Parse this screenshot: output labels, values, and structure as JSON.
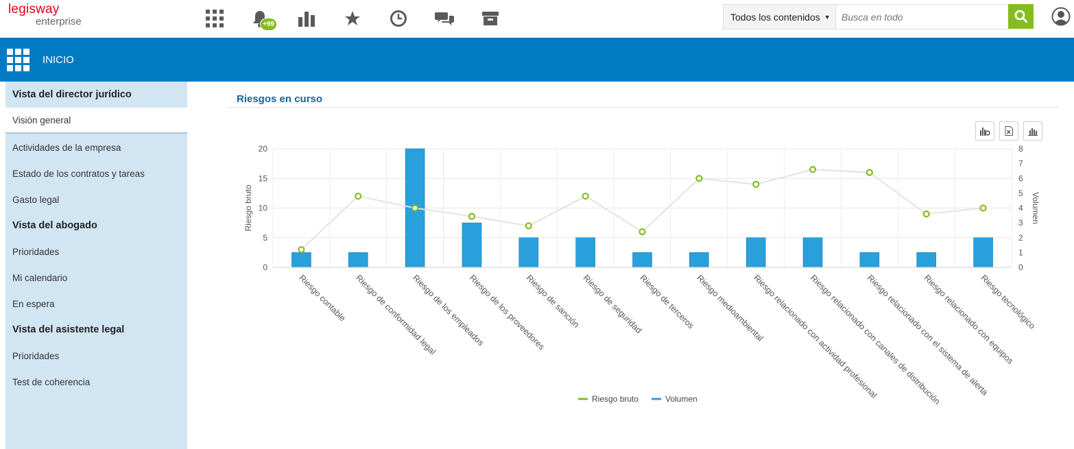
{
  "header": {
    "logo_brand": "legisway",
    "logo_sub": "enterprise",
    "notification_badge": "+99",
    "icons": [
      "apps-grid-icon",
      "bell-icon",
      "bar-chart-icon",
      "star-icon",
      "clock-icon",
      "chat-icon",
      "archive-icon"
    ],
    "search": {
      "scope": "Todos los contenidos",
      "placeholder": "Busca en todo"
    }
  },
  "band": {
    "title": "INICIO"
  },
  "sidebar": {
    "items": [
      {
        "label": "Vista del director jurídico",
        "type": "heading"
      },
      {
        "label": "Visión general",
        "type": "active"
      },
      {
        "label": "Actividades de la empresa",
        "type": "link"
      },
      {
        "label": "Estado de los contratos y tareas",
        "type": "link"
      },
      {
        "label": "Gasto legal",
        "type": "link"
      },
      {
        "label": "Vista del abogado",
        "type": "heading"
      },
      {
        "label": "Prioridades",
        "type": "link"
      },
      {
        "label": "Mi calendario",
        "type": "link"
      },
      {
        "label": "En espera",
        "type": "link"
      },
      {
        "label": "Vista del asistente legal",
        "type": "heading"
      },
      {
        "label": "Prioridades",
        "type": "link"
      },
      {
        "label": "Test de coherencia",
        "type": "link"
      }
    ]
  },
  "main": {
    "section_title": "Riesgos en curso"
  },
  "colors": {
    "brand_red": "#e2001a",
    "band_blue": "#007ac3",
    "accent_green": "#85bc20",
    "bar_blue": "#29a0dc",
    "sidebar_bg": "#d2e5f3"
  },
  "chart_data": {
    "type": "bar",
    "categories": [
      "Riesgo contable",
      "Riesgo de conformidad legal",
      "Riesgo de los empleados",
      "Riesgo de los proveedores",
      "Riesgo de sanción",
      "Riesgo de seguridad",
      "Riesgo de terceros",
      "Riesgo medioambiental",
      "Riesgo relacionado con actividad profesional",
      "Riesgo relacionado con canales de distribución",
      "Riesgo relacionado con el sistema de alerta",
      "Riesgo relacionado con equipos",
      "Riesgo tecnológico"
    ],
    "series": [
      {
        "name": "Volumen",
        "type": "bar",
        "axis": "right",
        "values": [
          1,
          1,
          8,
          3,
          2,
          2,
          1,
          1,
          2,
          2,
          1,
          1,
          2
        ]
      },
      {
        "name": "Riesgo bruto",
        "type": "line",
        "axis": "left",
        "values": [
          3,
          12,
          10,
          8.6,
          7,
          12,
          6,
          15,
          14,
          16.5,
          16,
          9,
          10
        ]
      }
    ],
    "ylabel": "Riesgo bruto",
    "y2label": "Volumen",
    "ylim": [
      0,
      20
    ],
    "y2lim": [
      0,
      8
    ],
    "yticks": [
      "0",
      "5",
      "10",
      "15",
      "20"
    ],
    "y2ticks": [
      "0",
      "1",
      "2",
      "3",
      "4",
      "5",
      "6",
      "7",
      "8"
    ],
    "legend": "bottom-center",
    "grid": true
  }
}
